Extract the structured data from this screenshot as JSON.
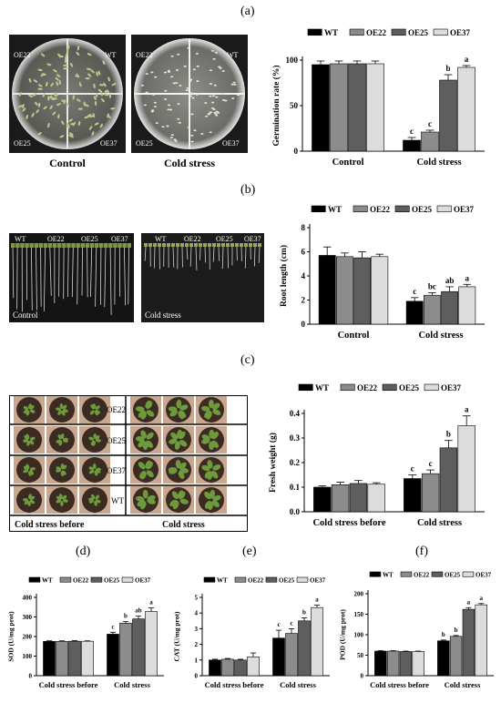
{
  "panel_labels": {
    "a": "(a)",
    "b": "(b)",
    "c": "(c)",
    "d": "(d)",
    "e": "(e)",
    "f": "(f)"
  },
  "photos": {
    "a": {
      "left_tags": [
        "OE22",
        "WT",
        "OE25",
        "OE37"
      ],
      "right_tags": [
        "OE22",
        "WT",
        "OE25",
        "OE37"
      ],
      "left_caption": "Control",
      "right_caption": "Cold stress"
    },
    "b": {
      "left_tags": [
        "WT",
        "OE22",
        "OE25",
        "OE37"
      ],
      "right_tags": [
        "WT",
        "OE22",
        "OE25",
        "OE37"
      ],
      "left_caption": "Control",
      "right_caption": "Cold stress"
    },
    "c": {
      "row_tags": [
        "OE22",
        "OE25",
        "OE37",
        "WT"
      ],
      "left_caption": "Cold stress before",
      "right_caption": "Cold stress"
    }
  },
  "colors": {
    "WT": "#000000",
    "OE22": "#8c8c8c",
    "OE25": "#5e5e5e",
    "OE37": "#dcdcdc"
  },
  "chart_data": [
    {
      "id": "a",
      "type": "bar",
      "categories": [
        "Control",
        "Cold stress"
      ],
      "series": [
        {
          "name": "WT",
          "values": [
            95,
            12
          ],
          "errors": [
            4,
            3
          ]
        },
        {
          "name": "OE22",
          "values": [
            96,
            21
          ],
          "errors": [
            3,
            2
          ]
        },
        {
          "name": "OE25",
          "values": [
            96,
            78
          ],
          "errors": [
            3,
            6
          ]
        },
        {
          "name": "OE37",
          "values": [
            96,
            92
          ],
          "errors": [
            3,
            2
          ]
        }
      ],
      "sig_labels": [
        [
          "",
          "",
          "",
          ""
        ],
        [
          "c",
          "c",
          "b",
          "a"
        ]
      ],
      "ylabel": "Germination rate (%)",
      "ylim": [
        0,
        100
      ],
      "yticks": [
        0,
        50,
        100
      ],
      "legend": "top"
    },
    {
      "id": "b",
      "type": "bar",
      "categories": [
        "Control",
        "Cold stress"
      ],
      "series": [
        {
          "name": "WT",
          "values": [
            5.7,
            1.9
          ],
          "errors": [
            0.7,
            0.3
          ]
        },
        {
          "name": "OE22",
          "values": [
            5.6,
            2.4
          ],
          "errors": [
            0.3,
            0.2
          ]
        },
        {
          "name": "OE25",
          "values": [
            5.5,
            2.7
          ],
          "errors": [
            0.5,
            0.4
          ]
        },
        {
          "name": "OE37",
          "values": [
            5.6,
            3.1
          ],
          "errors": [
            0.2,
            0.2
          ]
        }
      ],
      "sig_labels": [
        [
          "",
          "",
          "",
          ""
        ],
        [
          "c",
          "bc",
          "ab",
          "a"
        ]
      ],
      "ylabel": "Root length (cm)",
      "ylim": [
        0,
        8
      ],
      "yticks": [
        0,
        2,
        4,
        6,
        8
      ],
      "legend": "top"
    },
    {
      "id": "c",
      "type": "bar",
      "categories": [
        "Cold stress before",
        "Cold stress"
      ],
      "series": [
        {
          "name": "WT",
          "values": [
            0.1,
            0.135
          ],
          "errors": [
            0.005,
            0.015
          ]
        },
        {
          "name": "OE22",
          "values": [
            0.11,
            0.155
          ],
          "errors": [
            0.01,
            0.015
          ]
        },
        {
          "name": "OE25",
          "values": [
            0.115,
            0.26
          ],
          "errors": [
            0.012,
            0.03
          ]
        },
        {
          "name": "OE37",
          "values": [
            0.112,
            0.35
          ],
          "errors": [
            0.006,
            0.04
          ]
        }
      ],
      "sig_labels": [
        [
          "",
          "",
          "",
          ""
        ],
        [
          "c",
          "c",
          "b",
          "a"
        ]
      ],
      "ylabel": "Fresh weight (g)",
      "ylim": [
        0,
        0.4
      ],
      "yticks": [
        0.0,
        0.1,
        0.2,
        0.3,
        0.4
      ],
      "legend": "top"
    },
    {
      "id": "d",
      "type": "bar",
      "categories": [
        "Cold stress before",
        "Cold stress"
      ],
      "series": [
        {
          "name": "WT",
          "values": [
            175,
            212
          ],
          "errors": [
            3,
            10
          ]
        },
        {
          "name": "OE22",
          "values": [
            175,
            268
          ],
          "errors": [
            3,
            8
          ]
        },
        {
          "name": "OE25",
          "values": [
            176,
            290
          ],
          "errors": [
            3,
            14
          ]
        },
        {
          "name": "OE37",
          "values": [
            176,
            328
          ],
          "errors": [
            2,
            18
          ]
        }
      ],
      "sig_labels": [
        [
          "",
          "",
          "",
          ""
        ],
        [
          "c",
          "b",
          "ab",
          "a"
        ]
      ],
      "ylabel": "SOD (U/mg prot)",
      "ylim": [
        0,
        400
      ],
      "yticks": [
        0,
        100,
        200,
        300,
        400
      ],
      "legend": "top"
    },
    {
      "id": "e",
      "type": "bar",
      "categories": [
        "Cold stress before",
        "Cold stress"
      ],
      "series": [
        {
          "name": "WT",
          "values": [
            1.0,
            2.4
          ],
          "errors": [
            0.05,
            0.5
          ]
        },
        {
          "name": "OE22",
          "values": [
            1.05,
            2.7
          ],
          "errors": [
            0.05,
            0.3
          ]
        },
        {
          "name": "OE25",
          "values": [
            1.0,
            3.5
          ],
          "errors": [
            0.05,
            0.2
          ]
        },
        {
          "name": "OE37",
          "values": [
            1.2,
            4.35
          ],
          "errors": [
            0.25,
            0.15
          ]
        }
      ],
      "sig_labels": [
        [
          "",
          "",
          "",
          ""
        ],
        [
          "c",
          "c",
          "b",
          "a"
        ]
      ],
      "ylabel": "CAT (U/mg prot)",
      "ylim": [
        0,
        5
      ],
      "yticks": [
        0,
        1,
        2,
        3,
        4,
        5
      ],
      "legend": "top"
    },
    {
      "id": "f",
      "type": "bar",
      "categories": [
        "Cold stress before",
        "Cold stress"
      ],
      "series": [
        {
          "name": "WT",
          "values": [
            60,
            85
          ],
          "errors": [
            1,
            2
          ]
        },
        {
          "name": "OE22",
          "values": [
            60,
            96
          ],
          "errors": [
            1,
            2
          ]
        },
        {
          "name": "OE25",
          "values": [
            59,
            162
          ],
          "errors": [
            1,
            4
          ]
        },
        {
          "name": "OE37",
          "values": [
            59,
            173
          ],
          "errors": [
            1,
            3
          ]
        }
      ],
      "sig_labels": [
        [
          "",
          "",
          "",
          ""
        ],
        [
          "b",
          "b",
          "a",
          "a"
        ]
      ],
      "ylabel": "POD (U/mg prot)",
      "ylim": [
        0,
        200
      ],
      "yticks": [
        0,
        50,
        100,
        150,
        200
      ],
      "legend": "top"
    }
  ]
}
